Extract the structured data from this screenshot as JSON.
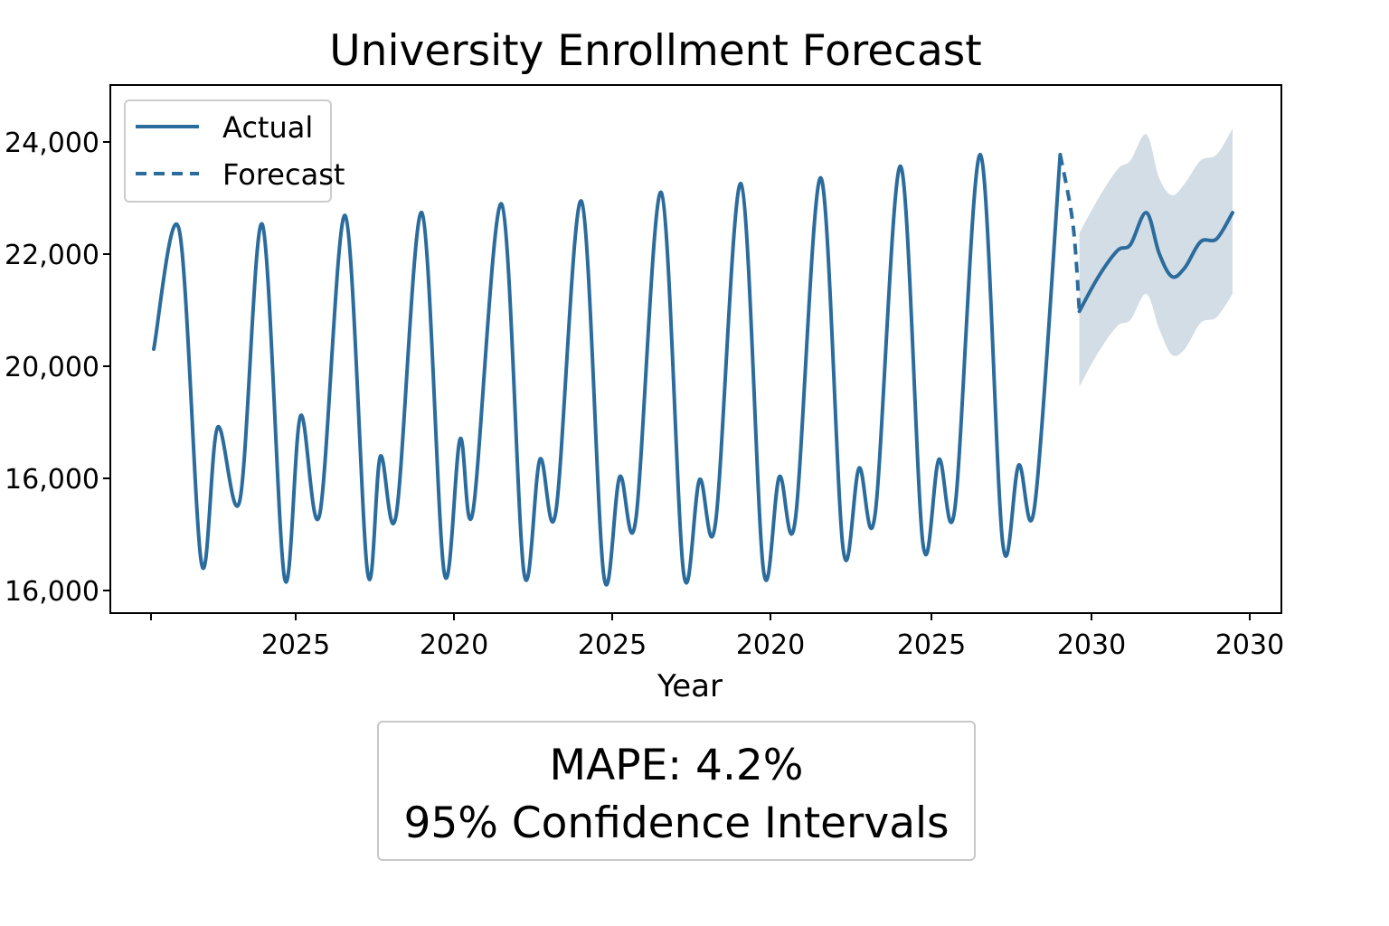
{
  "chart_data": {
    "type": "line",
    "title": "University Enrollment Forecast",
    "xlabel": "Year",
    "ylabel": "",
    "x_tick_labels": [
      "2025",
      "2020",
      "2025",
      "2020",
      "2025",
      "2030",
      "2030"
    ],
    "y_tick_labels": [
      "24,000",
      "22,000",
      "20,000",
      "16,000",
      "16,000"
    ],
    "ylim": [
      15600,
      24700
    ],
    "grid": false,
    "legend": {
      "position": "top-left",
      "entries": [
        "Actual",
        "Forecast"
      ]
    },
    "colors": {
      "line": "#2b6c9c",
      "band": "#d3dde6"
    },
    "series": [
      {
        "name": "Actual",
        "style": "solid",
        "points": [
          [
            0.0,
            20150
          ],
          [
            0.4,
            22200
          ],
          [
            0.75,
            16450
          ],
          [
            1.0,
            18800
          ],
          [
            1.35,
            17550
          ],
          [
            1.7,
            22300
          ],
          [
            2.05,
            16200
          ],
          [
            2.3,
            19000
          ],
          [
            2.6,
            17300
          ],
          [
            3.0,
            22450
          ],
          [
            3.35,
            16300
          ],
          [
            3.55,
            18300
          ],
          [
            3.8,
            17300
          ],
          [
            4.2,
            22500
          ],
          [
            4.55,
            16300
          ],
          [
            4.8,
            18600
          ],
          [
            5.0,
            17350
          ],
          [
            5.45,
            22650
          ],
          [
            5.8,
            16300
          ],
          [
            6.05,
            18250
          ],
          [
            6.3,
            17350
          ],
          [
            6.7,
            22700
          ],
          [
            7.05,
            16250
          ],
          [
            7.3,
            17950
          ],
          [
            7.55,
            17200
          ],
          [
            7.95,
            22850
          ],
          [
            8.3,
            16300
          ],
          [
            8.55,
            17900
          ],
          [
            8.8,
            17150
          ],
          [
            9.2,
            23000
          ],
          [
            9.55,
            16350
          ],
          [
            9.8,
            17950
          ],
          [
            10.05,
            17200
          ],
          [
            10.45,
            23100
          ],
          [
            10.8,
            16700
          ],
          [
            11.05,
            18100
          ],
          [
            11.3,
            17300
          ],
          [
            11.7,
            23300
          ],
          [
            12.05,
            16800
          ],
          [
            12.3,
            18250
          ],
          [
            12.55,
            17400
          ],
          [
            12.95,
            23500
          ],
          [
            13.3,
            16800
          ],
          [
            13.55,
            18150
          ],
          [
            13.8,
            17450
          ],
          [
            14.2,
            23500
          ]
        ]
      },
      {
        "name": "Forecast",
        "style": "dashed",
        "points": [
          [
            14.2,
            23500
          ],
          [
            14.4,
            22300
          ],
          [
            14.5,
            20800
          ]
        ]
      },
      {
        "name": "",
        "style": "solid",
        "points": [
          [
            14.5,
            20800
          ],
          [
            14.8,
            21400
          ],
          [
            15.1,
            21850
          ],
          [
            15.3,
            21950
          ],
          [
            15.55,
            22500
          ],
          [
            15.75,
            21800
          ],
          [
            15.95,
            21400
          ],
          [
            16.15,
            21550
          ],
          [
            16.4,
            22000
          ],
          [
            16.65,
            22050
          ],
          [
            16.9,
            22500
          ]
        ]
      }
    ],
    "confidence_band": {
      "upper": [
        [
          14.5,
          22150
        ],
        [
          14.8,
          22750
        ],
        [
          15.1,
          23250
        ],
        [
          15.3,
          23400
        ],
        [
          15.55,
          23850
        ],
        [
          15.75,
          23100
        ],
        [
          15.95,
          22800
        ],
        [
          16.15,
          23000
        ],
        [
          16.4,
          23400
        ],
        [
          16.65,
          23500
        ],
        [
          16.9,
          23950
        ]
      ],
      "lower": [
        [
          14.5,
          19500
        ],
        [
          14.8,
          20100
        ],
        [
          15.1,
          20550
        ],
        [
          15.3,
          20650
        ],
        [
          15.55,
          21100
        ],
        [
          15.75,
          20500
        ],
        [
          15.95,
          20050
        ],
        [
          16.15,
          20150
        ],
        [
          16.4,
          20600
        ],
        [
          16.65,
          20700
        ],
        [
          16.9,
          21100
        ]
      ]
    }
  },
  "metrics": {
    "line1": "MAPE: 4.2%",
    "line2": "95% Confidence Intervals"
  }
}
